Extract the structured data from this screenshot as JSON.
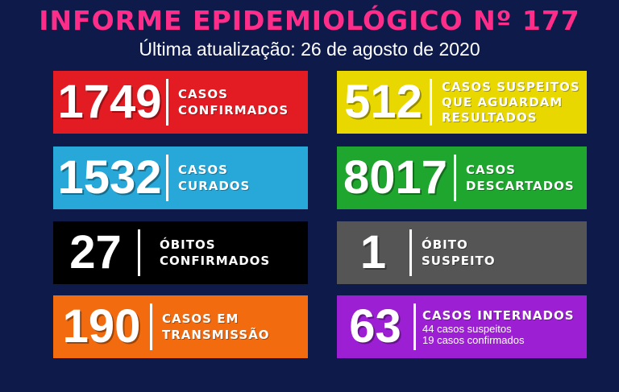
{
  "header": {
    "title": "INFORME EPIDEMIOLÓGICO Nº 177",
    "subtitle": "Última atualização: 26 de agosto de 2020"
  },
  "cards": [
    {
      "value": "1749",
      "line1": "CASOS",
      "line2": "CONFIRMADOS",
      "color": "#e31b23"
    },
    {
      "value": "512",
      "line1": "CASOS SUSPEITOS",
      "line2": "QUE AGUARDAM",
      "line3": "RESULTADOS",
      "color": "#e8d800"
    },
    {
      "value": "1532",
      "line1": "CASOS",
      "line2": "CURADOS",
      "color": "#27a8d8"
    },
    {
      "value": "8017",
      "line1": "CASOS",
      "line2": "DESCARTADOS",
      "color": "#1fa62f"
    },
    {
      "value": "27",
      "line1": "ÓBITOS",
      "line2": "CONFIRMADOS",
      "color": "#000000"
    },
    {
      "value": "1",
      "line1": "ÓBITO",
      "line2": "SUSPEITO",
      "color": "#555555"
    },
    {
      "value": "190",
      "line1": "CASOS EM",
      "line2": "TRANSMISSÃO",
      "color": "#f26b0f"
    },
    {
      "value": "63",
      "line1": "CASOS INTERNADOS",
      "line2": "44 casos suspeitos",
      "line3": "19 casos confirmados",
      "color": "#9c1fd4"
    }
  ]
}
